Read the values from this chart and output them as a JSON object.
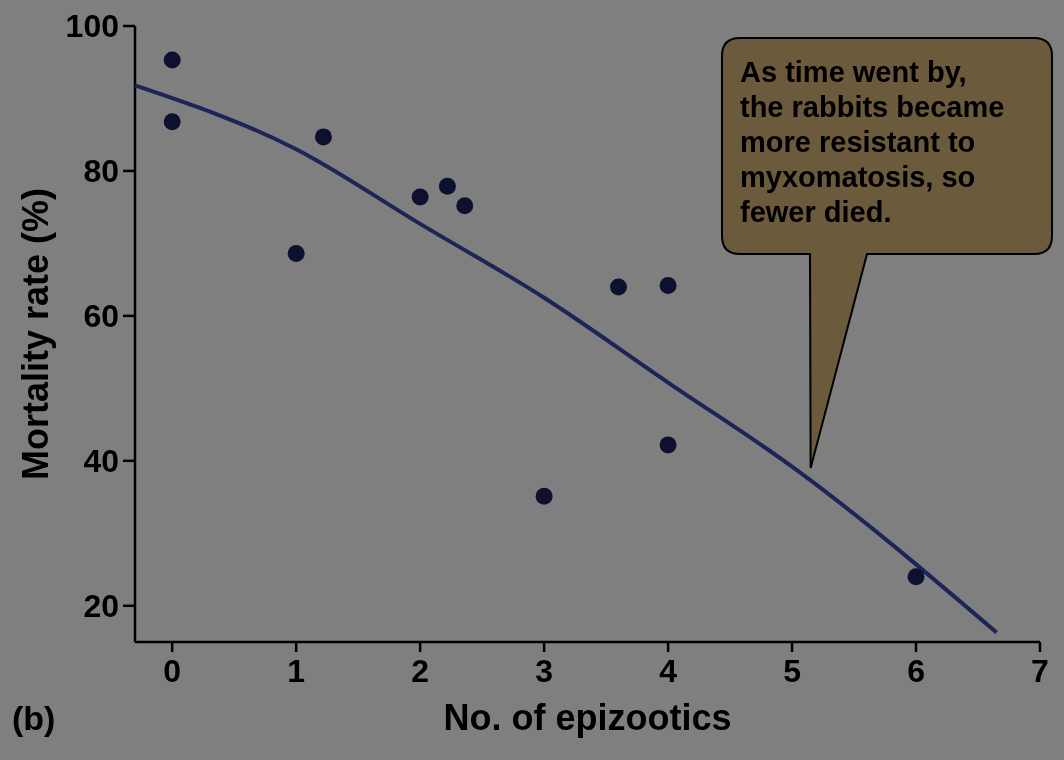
{
  "chart_data": {
    "type": "scatter",
    "xlabel": "No. of epizootics",
    "ylabel": "Mortality rate (%)",
    "xlim": [
      -0.3,
      7
    ],
    "xticks": [
      0,
      1,
      2,
      3,
      4,
      5,
      6,
      7
    ],
    "ylim": [
      15,
      100
    ],
    "yticks": [
      20,
      40,
      60,
      80,
      100
    ],
    "grid": false,
    "series": [
      {
        "marker": "circle",
        "color": "#0e1030",
        "x": [
          0,
          0,
          1,
          1.22,
          2,
          2.22,
          2.36,
          3,
          3.6,
          4,
          4,
          6
        ],
        "values": [
          95.3,
          86.8,
          68.6,
          84.7,
          76.4,
          77.9,
          75.2,
          35.1,
          64,
          64.2,
          42.2,
          24
        ]
      },
      {
        "type": "line",
        "color": "#1c2458",
        "line_style": "solid",
        "x": [
          -0.3,
          1,
          2,
          3,
          4,
          5,
          6.65
        ],
        "values": [
          91.8,
          83,
          72.7,
          62.5,
          50.8,
          39.2,
          16.3
        ]
      }
    ],
    "annotations": [
      "(b)",
      "As time went by, the rabbits became more resistant to myxomatosis, so fewer died."
    ]
  }
}
